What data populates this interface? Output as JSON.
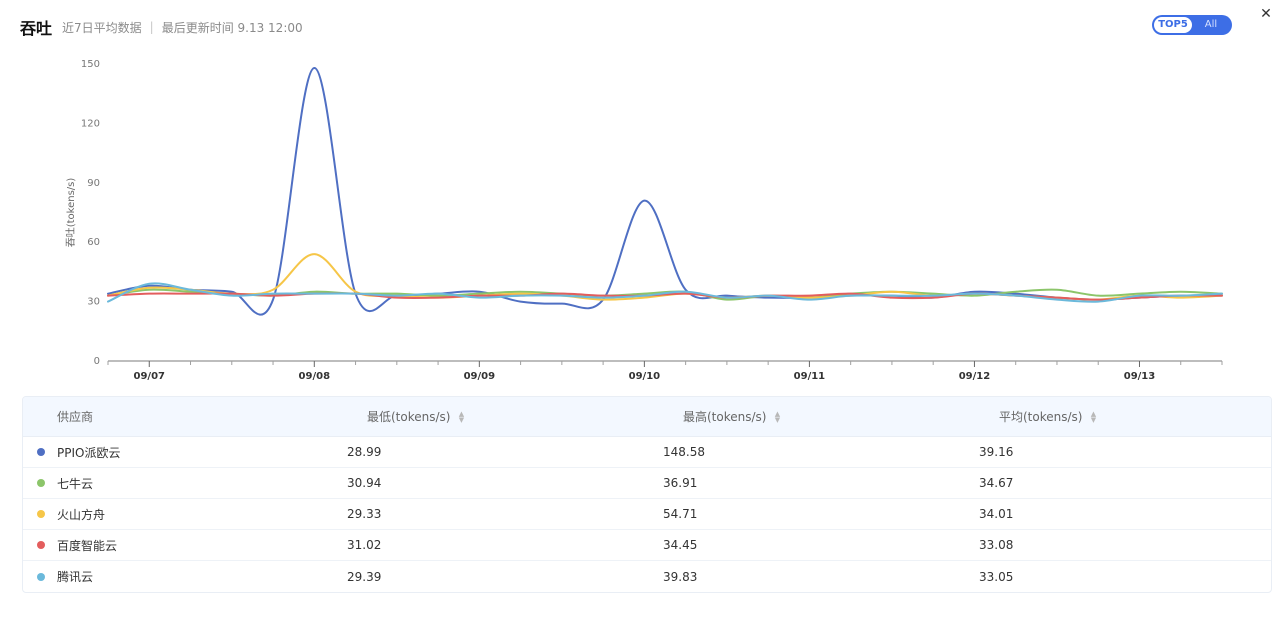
{
  "header": {
    "title": "吞吐",
    "subtitle_left": "近7日平均数据",
    "subtitle_right": "最后更新时间 9.13 12:00",
    "toggle": {
      "options": [
        "TOP5",
        "All"
      ],
      "selected": "TOP5"
    },
    "close_icon": "close-icon"
  },
  "chart_data": {
    "type": "line",
    "title": "",
    "xlabel": "",
    "ylabel": "吞吐(tokens/s)",
    "ylim": [
      0,
      150
    ],
    "yticks": [
      0,
      30,
      60,
      90,
      120,
      150
    ],
    "categories": [
      "09/07",
      "09/08",
      "09/09",
      "09/10",
      "09/11",
      "09/12",
      "09/13"
    ],
    "x": [
      6.75,
      7.0,
      7.25,
      7.5,
      7.75,
      8.0,
      8.25,
      8.5,
      8.75,
      9.0,
      9.25,
      9.5,
      9.75,
      10.0,
      10.25,
      10.5,
      10.75,
      11.0,
      11.25,
      11.5,
      11.75,
      12.0,
      12.25,
      12.5,
      12.75,
      13.0,
      13.25,
      13.5
    ],
    "x_tick_positions": [
      7,
      8,
      9,
      10,
      11,
      12,
      13
    ],
    "x_minor_step": 0.25,
    "grid": false,
    "legend": "none",
    "series": [
      {
        "name": "PPIO派欧云",
        "color": "#4f6fc3",
        "values": [
          34,
          38,
          36,
          35,
          31,
          148,
          34,
          33,
          34,
          35,
          30,
          29,
          31,
          81,
          36,
          33,
          32,
          32,
          33,
          33,
          32,
          35,
          34,
          32,
          31,
          32,
          33,
          33
        ]
      },
      {
        "name": "七牛云",
        "color": "#8cc56a",
        "values": [
          33,
          36,
          35,
          34,
          33,
          35,
          34,
          34,
          33,
          34,
          35,
          34,
          33,
          34,
          35,
          31,
          33,
          32,
          34,
          35,
          34,
          33,
          35,
          36,
          33,
          34,
          35,
          34
        ]
      },
      {
        "name": "火山方舟",
        "color": "#f6c648",
        "values": [
          33,
          37,
          36,
          34,
          36,
          54,
          35,
          33,
          32,
          33,
          34,
          33,
          31,
          32,
          34,
          32,
          33,
          32,
          33,
          35,
          33,
          34,
          33,
          32,
          31,
          33,
          32,
          33
        ]
      },
      {
        "name": "百度智能云",
        "color": "#e35d5d",
        "values": [
          33,
          34,
          34,
          34,
          33,
          34,
          34,
          32,
          32,
          33,
          33,
          34,
          33,
          33,
          34,
          32,
          33,
          33,
          34,
          32,
          32,
          34,
          33,
          32,
          31,
          32,
          33,
          33
        ]
      },
      {
        "name": "腾讯云",
        "color": "#6bb9db",
        "values": [
          30,
          39,
          36,
          33,
          34,
          34,
          34,
          33,
          34,
          32,
          33,
          33,
          32,
          33,
          35,
          32,
          33,
          31,
          33,
          33,
          33,
          34,
          33,
          31,
          30,
          33,
          33,
          34
        ]
      }
    ]
  },
  "table": {
    "headers": {
      "provider": "供应商",
      "min": "最低(tokens/s)",
      "max": "最高(tokens/s)",
      "avg": "平均(tokens/s)"
    },
    "rows": [
      {
        "color": "#4f6fc3",
        "provider": "PPIO派欧云",
        "min": "28.99",
        "max": "148.58",
        "avg": "39.16"
      },
      {
        "color": "#8cc56a",
        "provider": "七牛云",
        "min": "30.94",
        "max": "36.91",
        "avg": "34.67"
      },
      {
        "color": "#f6c648",
        "provider": "火山方舟",
        "min": "29.33",
        "max": "54.71",
        "avg": "34.01"
      },
      {
        "color": "#e35d5d",
        "provider": "百度智能云",
        "min": "31.02",
        "max": "34.45",
        "avg": "33.08"
      },
      {
        "color": "#6bb9db",
        "provider": "腾讯云",
        "min": "29.39",
        "max": "39.83",
        "avg": "33.05"
      }
    ]
  }
}
